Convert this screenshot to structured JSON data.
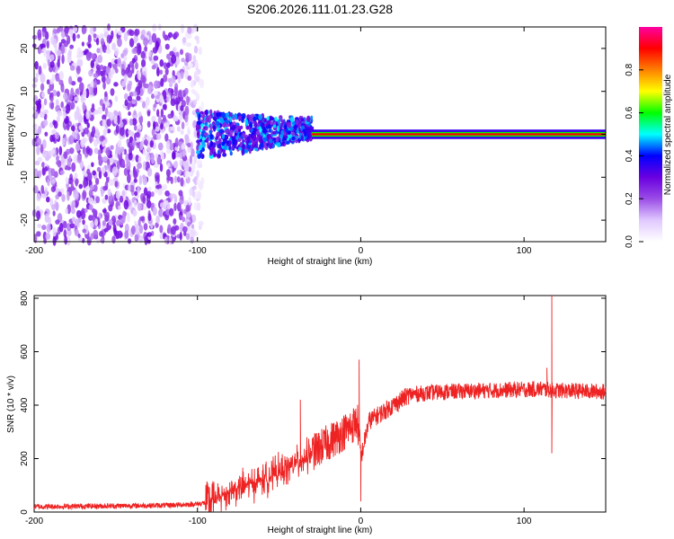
{
  "title": "S206.2026.111.01.23.G28",
  "chart_data": [
    {
      "type": "heatmap",
      "name": "spectrogram",
      "xlabel": "Height of straight line (km)",
      "ylabel": "Frequency (Hz)",
      "xlim": [
        -200,
        150
      ],
      "ylim": [
        -25,
        25
      ],
      "xticks": [
        -200,
        -100,
        0,
        100
      ],
      "yticks": [
        -20,
        -10,
        0,
        10,
        20
      ],
      "description_regions": [
        {
          "x_range": [
            -200,
            -100
          ],
          "frequency_spread": [
            -25,
            25
          ],
          "amplitude": "low, noisy"
        },
        {
          "x_range": [
            -100,
            -30
          ],
          "frequency_spread": [
            -7,
            4
          ],
          "amplitude": "medium"
        },
        {
          "x_range": [
            -30,
            150
          ],
          "frequency_spread": [
            -1,
            1
          ],
          "amplitude": "high, narrow carrier near 0 Hz"
        }
      ],
      "colorbar": {
        "label": "Normalized spectral amplitude",
        "range": [
          0.0,
          1.0
        ],
        "ticks": [
          "0.0",
          "0.2",
          "0.4",
          "0.6",
          "0.8"
        ],
        "colormap": [
          "#ffffff",
          "#e0c8ff",
          "#9a4ce6",
          "#6a00e0",
          "#0000ff",
          "#00ffff",
          "#00ff00",
          "#ffff00",
          "#ff8000",
          "#ff0000",
          "#ff00a0"
        ]
      }
    },
    {
      "type": "line",
      "name": "snr",
      "xlabel": "Height of straight line (km)",
      "ylabel": "SNR (10 * v/v)",
      "xlim": [
        -200,
        150
      ],
      "ylim": [
        0,
        810
      ],
      "xticks": [
        -200,
        -100,
        0,
        100
      ],
      "yticks": [
        0,
        200,
        400,
        600,
        800
      ],
      "color": "#ee2222",
      "series_trend": {
        "x": [
          -200,
          -120,
          -100,
          -90,
          -80,
          -60,
          -40,
          -20,
          -10,
          -2,
          0,
          5,
          10,
          20,
          30,
          50,
          80,
          110,
          120,
          150
        ],
        "y": [
          20,
          25,
          30,
          40,
          80,
          120,
          180,
          260,
          300,
          340,
          200,
          340,
          360,
          400,
          440,
          450,
          455,
          460,
          455,
          450
        ]
      },
      "spikes": [
        {
          "x": -37,
          "y": 420
        },
        {
          "x": -1,
          "y": 570
        },
        {
          "x": 0,
          "y": 40
        },
        {
          "x": 114,
          "y": 540
        },
        {
          "x": 117,
          "y": 810
        },
        {
          "x": 117,
          "y": 220
        }
      ]
    }
  ]
}
